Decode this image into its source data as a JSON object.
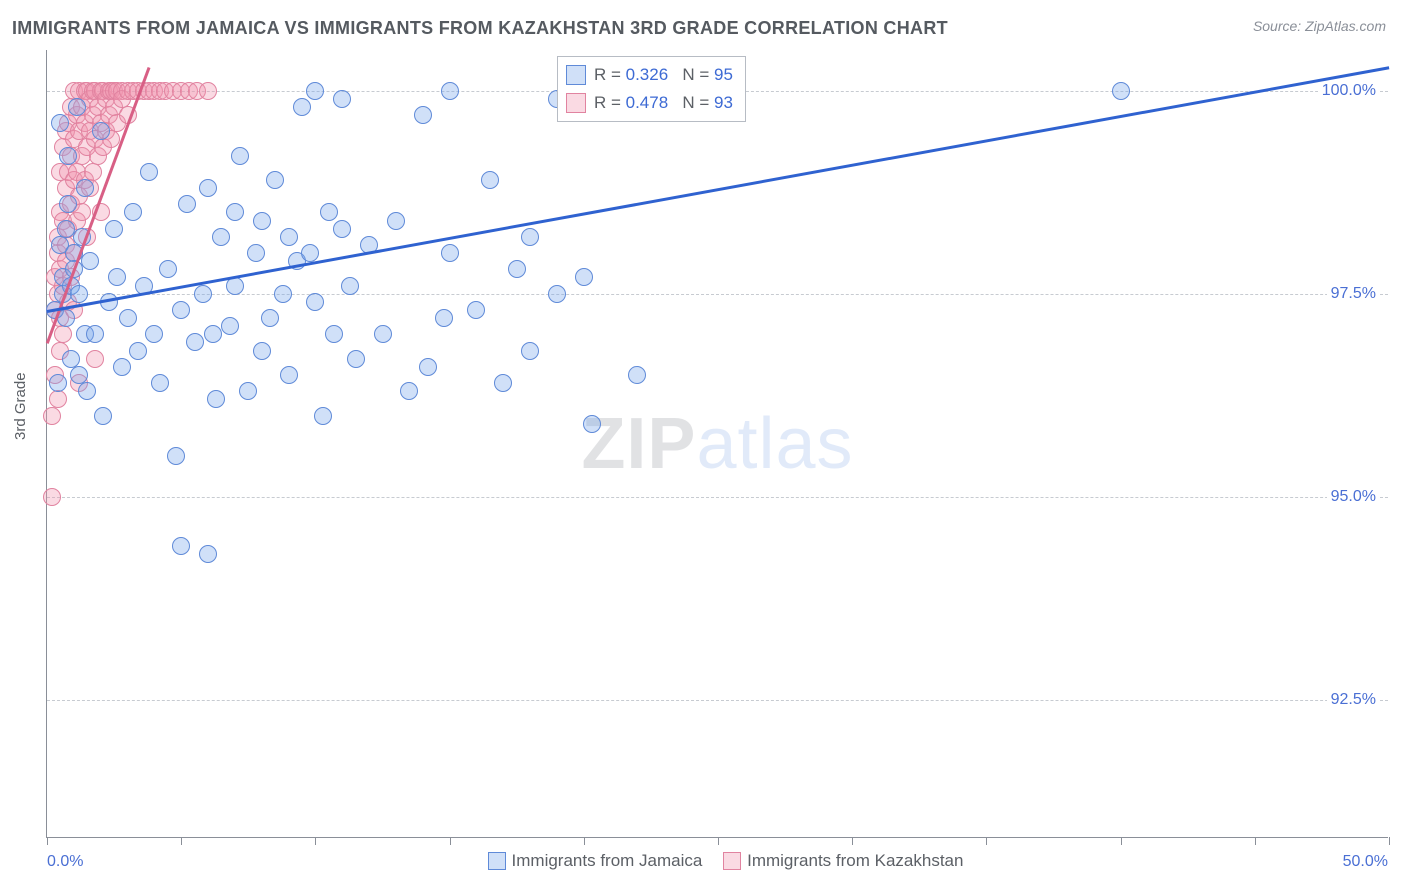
{
  "title": "IMMIGRANTS FROM JAMAICA VS IMMIGRANTS FROM KAZAKHSTAN 3RD GRADE CORRELATION CHART",
  "source": "Source: ZipAtlas.com",
  "ylabel": "3rd Grade",
  "watermark": {
    "zip": "ZIP",
    "atlas": "atlas"
  },
  "chart": {
    "type": "scatter",
    "background_color": "#ffffff",
    "grid_color": "#c7cbd1",
    "axis_color": "#8a8f98",
    "tick_label_color": "#4a6fd4",
    "xlim": [
      0,
      50
    ],
    "ylim": [
      90.8,
      100.5
    ],
    "xtick_positions": [
      0,
      5,
      10,
      15,
      20,
      25,
      30,
      35,
      40,
      45,
      50
    ],
    "xtick_labels_shown": {
      "0": "0.0%",
      "50": "50.0%"
    },
    "ytick_positions": [
      92.5,
      95.0,
      97.5,
      100.0
    ],
    "ytick_labels": [
      "92.5%",
      "95.0%",
      "97.5%",
      "100.0%"
    ],
    "marker_radius": 9,
    "marker_border_width": 1.5,
    "line_width": 2.5,
    "series": {
      "jamaica": {
        "label": "Immigrants from Jamaica",
        "fill": "rgba(120,165,235,0.35)",
        "stroke": "#5f8ad8",
        "line_color": "#2f62d0",
        "R": 0.326,
        "N": 95,
        "trend": {
          "x1": 0,
          "y1": 97.3,
          "x2": 50,
          "y2": 100.3
        },
        "points": [
          [
            0.3,
            97.3
          ],
          [
            0.4,
            96.4
          ],
          [
            0.5,
            98.1
          ],
          [
            0.5,
            99.6
          ],
          [
            0.6,
            97.7
          ],
          [
            0.6,
            97.5
          ],
          [
            0.7,
            98.3
          ],
          [
            0.7,
            97.2
          ],
          [
            0.8,
            98.6
          ],
          [
            0.8,
            99.2
          ],
          [
            0.9,
            97.6
          ],
          [
            0.9,
            96.7
          ],
          [
            1.0,
            98.0
          ],
          [
            1.0,
            97.8
          ],
          [
            1.1,
            99.8
          ],
          [
            1.2,
            97.5
          ],
          [
            1.2,
            96.5
          ],
          [
            1.3,
            98.2
          ],
          [
            1.4,
            97.0
          ],
          [
            1.4,
            98.8
          ],
          [
            1.5,
            96.3
          ],
          [
            1.6,
            97.9
          ],
          [
            1.8,
            97.0
          ],
          [
            2.0,
            99.5
          ],
          [
            2.1,
            96.0
          ],
          [
            2.3,
            97.4
          ],
          [
            2.5,
            98.3
          ],
          [
            2.6,
            97.7
          ],
          [
            2.8,
            96.6
          ],
          [
            3.0,
            97.2
          ],
          [
            3.2,
            98.5
          ],
          [
            3.4,
            96.8
          ],
          [
            3.6,
            97.6
          ],
          [
            3.8,
            99.0
          ],
          [
            4.0,
            97.0
          ],
          [
            4.2,
            96.4
          ],
          [
            4.5,
            97.8
          ],
          [
            4.8,
            95.5
          ],
          [
            5.0,
            97.3
          ],
          [
            5.0,
            94.4
          ],
          [
            5.2,
            98.6
          ],
          [
            5.5,
            96.9
          ],
          [
            5.8,
            97.5
          ],
          [
            6.0,
            94.3
          ],
          [
            6.0,
            98.8
          ],
          [
            6.2,
            97.0
          ],
          [
            6.3,
            96.2
          ],
          [
            6.5,
            98.2
          ],
          [
            6.8,
            97.1
          ],
          [
            7.0,
            98.5
          ],
          [
            7.0,
            97.6
          ],
          [
            7.2,
            99.2
          ],
          [
            7.5,
            96.3
          ],
          [
            7.8,
            98.0
          ],
          [
            8.0,
            96.8
          ],
          [
            8.0,
            98.4
          ],
          [
            8.3,
            97.2
          ],
          [
            8.5,
            98.9
          ],
          [
            8.8,
            97.5
          ],
          [
            9.0,
            98.2
          ],
          [
            9.0,
            96.5
          ],
          [
            9.3,
            97.9
          ],
          [
            9.5,
            99.8
          ],
          [
            9.8,
            98.0
          ],
          [
            10.0,
            100.0
          ],
          [
            10.0,
            97.4
          ],
          [
            10.3,
            96.0
          ],
          [
            10.5,
            98.5
          ],
          [
            10.7,
            97.0
          ],
          [
            11.0,
            99.9
          ],
          [
            11.0,
            98.3
          ],
          [
            11.3,
            97.6
          ],
          [
            11.5,
            96.7
          ],
          [
            12.0,
            98.1
          ],
          [
            12.5,
            97.0
          ],
          [
            13.0,
            98.4
          ],
          [
            13.5,
            96.3
          ],
          [
            14.0,
            99.7
          ],
          [
            14.2,
            96.6
          ],
          [
            14.8,
            97.2
          ],
          [
            15.0,
            100.0
          ],
          [
            15.0,
            98.0
          ],
          [
            16.0,
            97.3
          ],
          [
            16.5,
            98.9
          ],
          [
            17.0,
            96.4
          ],
          [
            17.5,
            97.8
          ],
          [
            18.0,
            96.8
          ],
          [
            18.0,
            98.2
          ],
          [
            19.0,
            99.9
          ],
          [
            19.0,
            97.5
          ],
          [
            19.5,
            100.0
          ],
          [
            20.0,
            97.7
          ],
          [
            20.3,
            95.9
          ],
          [
            22.0,
            96.5
          ],
          [
            40.0,
            100.0
          ]
        ]
      },
      "kazakhstan": {
        "label": "Immigrants from Kazakhstan",
        "fill": "rgba(240,150,175,0.35)",
        "stroke": "#e183a0",
        "line_color": "#d85f85",
        "R": 0.478,
        "N": 93,
        "trend": {
          "x1": 0,
          "y1": 96.9,
          "x2": 3.8,
          "y2": 100.3
        },
        "points": [
          [
            0.2,
            95.0
          ],
          [
            0.2,
            96.0
          ],
          [
            0.3,
            96.5
          ],
          [
            0.3,
            97.3
          ],
          [
            0.3,
            97.7
          ],
          [
            0.4,
            98.0
          ],
          [
            0.4,
            97.5
          ],
          [
            0.4,
            98.2
          ],
          [
            0.4,
            96.2
          ],
          [
            0.5,
            98.5
          ],
          [
            0.5,
            97.8
          ],
          [
            0.5,
            97.2
          ],
          [
            0.5,
            99.0
          ],
          [
            0.5,
            96.8
          ],
          [
            0.6,
            99.3
          ],
          [
            0.6,
            98.4
          ],
          [
            0.6,
            97.6
          ],
          [
            0.6,
            97.0
          ],
          [
            0.7,
            99.5
          ],
          [
            0.7,
            98.8
          ],
          [
            0.7,
            97.9
          ],
          [
            0.7,
            98.1
          ],
          [
            0.8,
            99.0
          ],
          [
            0.8,
            99.6
          ],
          [
            0.8,
            98.3
          ],
          [
            0.8,
            97.4
          ],
          [
            0.9,
            99.8
          ],
          [
            0.9,
            98.6
          ],
          [
            0.9,
            99.2
          ],
          [
            0.9,
            97.7
          ],
          [
            1.0,
            100.0
          ],
          [
            1.0,
            99.4
          ],
          [
            1.0,
            98.9
          ],
          [
            1.0,
            98.0
          ],
          [
            1.0,
            97.3
          ],
          [
            1.1,
            99.7
          ],
          [
            1.1,
            99.0
          ],
          [
            1.1,
            98.4
          ],
          [
            1.2,
            100.0
          ],
          [
            1.2,
            99.5
          ],
          [
            1.2,
            98.7
          ],
          [
            1.2,
            96.4
          ],
          [
            1.3,
            99.8
          ],
          [
            1.3,
            99.2
          ],
          [
            1.3,
            98.5
          ],
          [
            1.4,
            100.0
          ],
          [
            1.4,
            99.6
          ],
          [
            1.4,
            98.9
          ],
          [
            1.5,
            100.0
          ],
          [
            1.5,
            99.3
          ],
          [
            1.5,
            98.2
          ],
          [
            1.6,
            99.9
          ],
          [
            1.6,
            99.5
          ],
          [
            1.6,
            98.8
          ],
          [
            1.7,
            100.0
          ],
          [
            1.7,
            99.7
          ],
          [
            1.7,
            99.0
          ],
          [
            1.8,
            100.0
          ],
          [
            1.8,
            99.4
          ],
          [
            1.8,
            96.7
          ],
          [
            1.9,
            99.8
          ],
          [
            1.9,
            99.2
          ],
          [
            2.0,
            100.0
          ],
          [
            2.0,
            99.6
          ],
          [
            2.0,
            98.5
          ],
          [
            2.1,
            100.0
          ],
          [
            2.1,
            99.3
          ],
          [
            2.2,
            99.9
          ],
          [
            2.2,
            99.5
          ],
          [
            2.3,
            100.0
          ],
          [
            2.3,
            99.7
          ],
          [
            2.4,
            100.0
          ],
          [
            2.4,
            99.4
          ],
          [
            2.5,
            100.0
          ],
          [
            2.5,
            99.8
          ],
          [
            2.6,
            100.0
          ],
          [
            2.6,
            99.6
          ],
          [
            2.8,
            100.0
          ],
          [
            2.8,
            99.9
          ],
          [
            3.0,
            100.0
          ],
          [
            3.0,
            99.7
          ],
          [
            3.2,
            100.0
          ],
          [
            3.4,
            100.0
          ],
          [
            3.6,
            100.0
          ],
          [
            3.8,
            100.0
          ],
          [
            4.0,
            100.0
          ],
          [
            4.2,
            100.0
          ],
          [
            4.4,
            100.0
          ],
          [
            4.7,
            100.0
          ],
          [
            5.0,
            100.0
          ],
          [
            5.3,
            100.0
          ],
          [
            5.6,
            100.0
          ],
          [
            6.0,
            100.0
          ]
        ]
      }
    },
    "legend": {
      "R_label": "R = ",
      "N_label": "N = ",
      "value_color": "#3d6ad4",
      "border_color": "#b7bcc4"
    }
  }
}
